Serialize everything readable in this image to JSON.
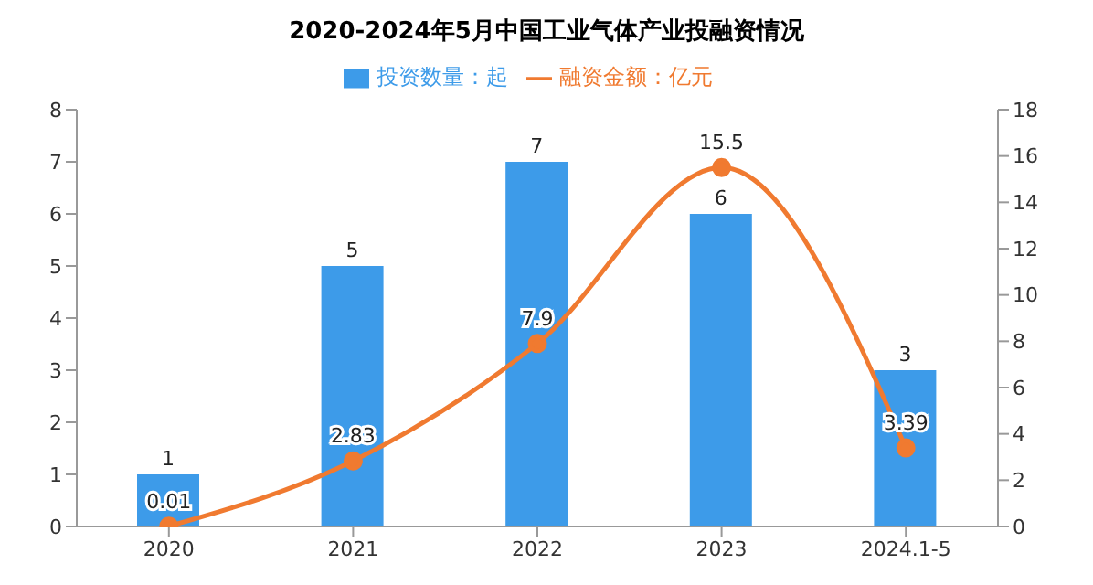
{
  "chart_data": {
    "type": "bar",
    "title": "2020-2024年5月中国工业气体产业投融资情况",
    "categories": [
      "2020",
      "2021",
      "2022",
      "2023",
      "2024.1-5"
    ],
    "series": [
      {
        "name": "投资数量：起",
        "color": "#3d9be9",
        "values": [
          1,
          5,
          7,
          6,
          3
        ]
      },
      {
        "name": "融资金额：亿元",
        "type": "line",
        "axis": "y2",
        "color": "#f07a30",
        "values": [
          0.01,
          2.83,
          7.9,
          15.5,
          3.39
        ]
      }
    ],
    "ylim": [
      0,
      8
    ],
    "yticks": [
      0,
      1,
      2,
      3,
      4,
      5,
      6,
      7,
      8
    ],
    "y2lim": [
      0,
      18
    ],
    "y2ticks": [
      0,
      2,
      4,
      6,
      8,
      10,
      12,
      14,
      16,
      18
    ],
    "legend": "top",
    "marker": "circle",
    "data_labels": true,
    "grid": false
  }
}
